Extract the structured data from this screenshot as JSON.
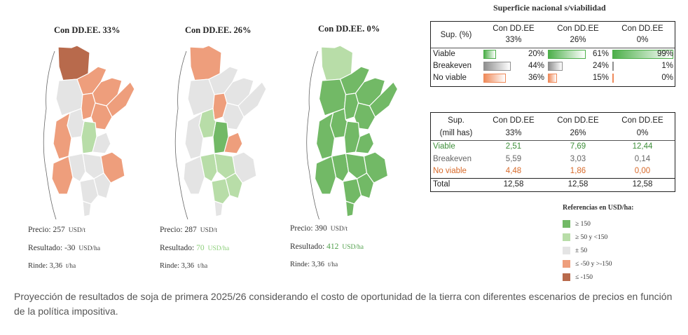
{
  "maps": [
    {
      "title": "Con DD.EE. 33%",
      "precio_label": "Precio:",
      "precio": "257",
      "precio_unit": "USD/t",
      "resultado_label": "Resultado:",
      "resultado": "-30",
      "resultado_unit": "USD/ha",
      "rinde_label": "Rinde:",
      "rinde": "3,36",
      "rinde_unit": "t/ha"
    },
    {
      "title": "Con DD.EE. 26%",
      "precio_label": "Precio:",
      "precio": "287",
      "precio_unit": "USD/t",
      "resultado_label": "Resultado:",
      "resultado": "70",
      "resultado_unit": "USD/ha",
      "rinde_label": "Rinde:",
      "rinde": "3,36",
      "rinde_unit": "t/ha"
    },
    {
      "title": "Con DD.EE. 0%",
      "precio_label": "Precio:",
      "precio": "390",
      "precio_unit": "USD/t",
      "resultado_label": "Resultado:",
      "resultado": "412",
      "resultado_unit": "USD/ha",
      "rinde_label": "Rinde:",
      "rinde": "3,36",
      "rinde_unit": "t/ha"
    }
  ],
  "pct_table": {
    "title": "Superficie nacional s/viabilidad",
    "header_label": "Sup. (%)",
    "scenarios": [
      {
        "line1": "Con DD.EE",
        "line2": "33%"
      },
      {
        "line1": "Con DD.EE",
        "line2": "26%"
      },
      {
        "line1": "Con DD.EE",
        "line2": "0%"
      }
    ],
    "rows": [
      {
        "label": "Viable",
        "values": [
          "20%",
          "61%",
          "99%"
        ],
        "fractions": [
          0.2,
          0.61,
          0.99
        ],
        "color": "#4daf4a"
      },
      {
        "label": "Breakeven",
        "values": [
          "44%",
          "24%",
          "1%"
        ],
        "fractions": [
          0.44,
          0.24,
          0.01
        ],
        "color": "#8f8f8f"
      },
      {
        "label": "No viable",
        "values": [
          "36%",
          "15%",
          "0%"
        ],
        "fractions": [
          0.36,
          0.15,
          0.0
        ],
        "color": "#ef8a5a"
      }
    ]
  },
  "mha_table": {
    "header_label_1": "Sup.",
    "header_label_2": "(mill has)",
    "scenarios": [
      {
        "line1": "Con DD.EE",
        "line2": "33%"
      },
      {
        "line1": "Con DD.EE",
        "line2": "26%"
      },
      {
        "line1": "Con DD.EE",
        "line2": "0%"
      }
    ],
    "rows": [
      {
        "label": "Viable",
        "values": [
          "2,51",
          "7,69",
          "12,44"
        ],
        "color": "#3e8f3a"
      },
      {
        "label": "Breakeven",
        "values": [
          "5,59",
          "3,03",
          "0,14"
        ],
        "color": "#666666"
      },
      {
        "label": "No viable",
        "values": [
          "4,48",
          "1,86",
          "0,00"
        ],
        "color": "#d86a2a"
      }
    ],
    "total": {
      "label": "Total",
      "values": [
        "12,58",
        "12,58",
        "12,58"
      ]
    }
  },
  "legend": {
    "title": "Referencias en USD/ha:",
    "items": [
      {
        "label": "≥ 150",
        "color": "#72b966"
      },
      {
        "label": "≥ 50 y <150",
        "color": "#b8dda8"
      },
      {
        "label": "± 50",
        "color": "#e4e4e4"
      },
      {
        "label": "≤ -50 y >-150",
        "color": "#ee9e7c"
      },
      {
        "label": "≤ -150",
        "color": "#b86a4c"
      }
    ]
  },
  "caption": "Proyección de resultados de soja de primera 2025/26 considerando el costo de oportunidad de la tierra con diferentes escenarios de precios en función de la política impositiva.",
  "colors": {
    "dark_red": "#b86a4c",
    "red": "#ee9e7c",
    "grey": "#e4e4e4",
    "light_green": "#b8dda8",
    "green": "#72b966",
    "border": "#ffffff"
  }
}
